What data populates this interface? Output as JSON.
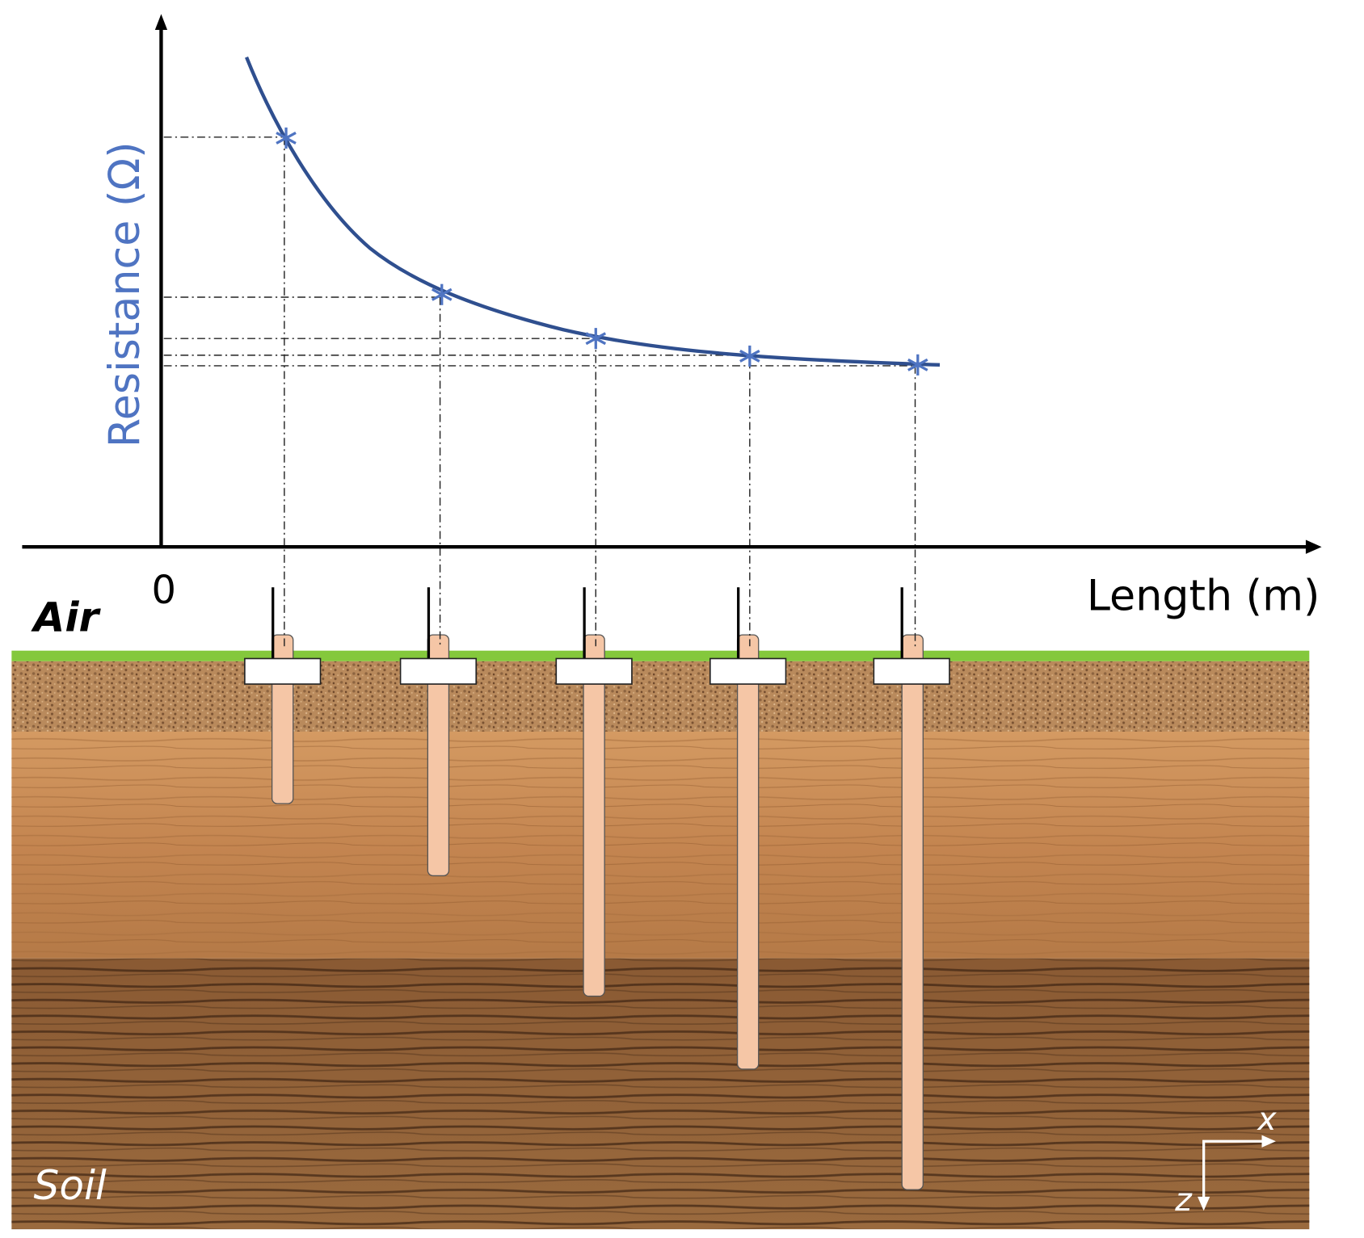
{
  "chart": {
    "y_label": "Resistance (Ω)",
    "origin_label": "0",
    "x_label": "Length (m)"
  },
  "scene": {
    "air_label": "Air",
    "soil_label": "Soil",
    "axis_x_label": "x",
    "axis_z_label": "z"
  }
}
